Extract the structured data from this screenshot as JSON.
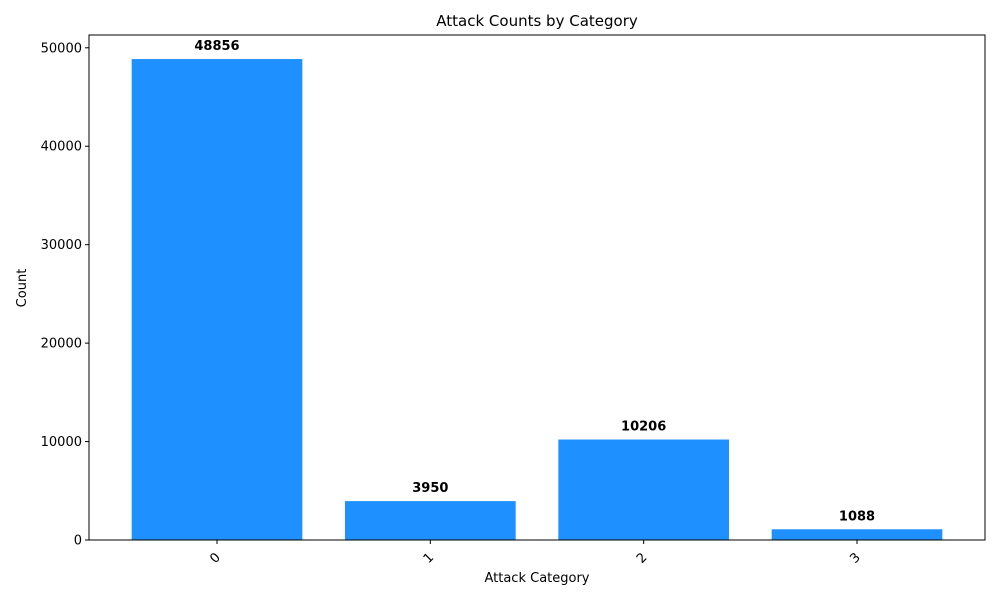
{
  "chart_data": {
    "type": "bar",
    "title": "Attack Counts by Category",
    "xlabel": "Attack Category",
    "ylabel": "Count",
    "categories": [
      "0",
      "1",
      "2",
      "3"
    ],
    "values": [
      48856,
      3950,
      10206,
      1088
    ],
    "data_labels": [
      "48856",
      "3950",
      "10206",
      "1088"
    ],
    "ylim": [
      0,
      51300
    ],
    "yticks": [
      0,
      10000,
      20000,
      30000,
      40000,
      50000
    ],
    "ytick_labels": [
      "0",
      "10000",
      "20000",
      "30000",
      "40000",
      "50000"
    ],
    "xtick_rotation": 45,
    "grid": false,
    "legend": "none",
    "bar_color": "#1E90FF"
  }
}
